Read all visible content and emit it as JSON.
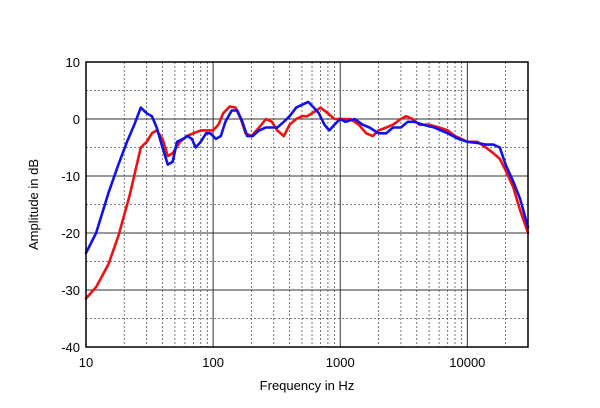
{
  "chart_data": {
    "type": "line",
    "xlabel": "Frequency in Hz",
    "ylabel": "Amplitude in dB",
    "xscale": "log",
    "xlim": [
      10,
      30000
    ],
    "ylim": [
      -40,
      10
    ],
    "grid": true,
    "x_tick_labels": [
      "10",
      "100",
      "1000",
      "10000"
    ],
    "x_ticks": [
      10,
      100,
      1000,
      10000
    ],
    "y_ticks": [
      -40,
      -30,
      -20,
      -10,
      0,
      10
    ],
    "y_tick_labels": [
      "-40",
      "-30",
      "-20",
      "-10",
      "0",
      "10"
    ],
    "series": [
      {
        "color": "#ee1111",
        "points": [
          [
            10,
            -31.5
          ],
          [
            12,
            -29.5
          ],
          [
            15,
            -25.5
          ],
          [
            18,
            -20.5
          ],
          [
            22,
            -13.5
          ],
          [
            27,
            -5
          ],
          [
            30,
            -4
          ],
          [
            33,
            -2.5
          ],
          [
            36,
            -2
          ],
          [
            40,
            -3.5
          ],
          [
            44,
            -6.5
          ],
          [
            48,
            -6
          ],
          [
            55,
            -4
          ],
          [
            62,
            -3
          ],
          [
            70,
            -2.5
          ],
          [
            80,
            -2
          ],
          [
            90,
            -2
          ],
          [
            100,
            -2
          ],
          [
            110,
            -1
          ],
          [
            120,
            1
          ],
          [
            135,
            2.2
          ],
          [
            150,
            2
          ],
          [
            165,
            0
          ],
          [
            180,
            -2.5
          ],
          [
            200,
            -3
          ],
          [
            230,
            -1.5
          ],
          [
            260,
            0
          ],
          [
            290,
            -0.5
          ],
          [
            320,
            -2
          ],
          [
            360,
            -3
          ],
          [
            400,
            -1
          ],
          [
            450,
            0
          ],
          [
            500,
            0.5
          ],
          [
            550,
            0.5
          ],
          [
            600,
            1
          ],
          [
            650,
            1.5
          ],
          [
            700,
            2
          ],
          [
            800,
            1
          ],
          [
            900,
            0
          ],
          [
            1000,
            0
          ],
          [
            1200,
            0
          ],
          [
            1400,
            -1
          ],
          [
            1600,
            -2.5
          ],
          [
            1800,
            -3
          ],
          [
            2000,
            -2
          ],
          [
            2300,
            -1.5
          ],
          [
            2600,
            -1
          ],
          [
            3000,
            0
          ],
          [
            3300,
            0.5
          ],
          [
            3700,
            0
          ],
          [
            4200,
            -1
          ],
          [
            5000,
            -1
          ],
          [
            6000,
            -1.5
          ],
          [
            7000,
            -2
          ],
          [
            8000,
            -3
          ],
          [
            9000,
            -3.5
          ],
          [
            10000,
            -4
          ],
          [
            12000,
            -4
          ],
          [
            14000,
            -5
          ],
          [
            16000,
            -6
          ],
          [
            18000,
            -7
          ],
          [
            20000,
            -9
          ],
          [
            23000,
            -12
          ],
          [
            26000,
            -16
          ],
          [
            30000,
            -20
          ]
        ]
      },
      {
        "color": "#1111ee",
        "points": [
          [
            10,
            -23.5
          ],
          [
            12,
            -20
          ],
          [
            15,
            -13
          ],
          [
            18,
            -8
          ],
          [
            21,
            -4
          ],
          [
            24,
            -1
          ],
          [
            27,
            2
          ],
          [
            30,
            1
          ],
          [
            33,
            0.5
          ],
          [
            36,
            -1.5
          ],
          [
            40,
            -5
          ],
          [
            44,
            -8
          ],
          [
            48,
            -7.5
          ],
          [
            52,
            -4
          ],
          [
            58,
            -3.5
          ],
          [
            63,
            -3
          ],
          [
            68,
            -3.5
          ],
          [
            73,
            -5
          ],
          [
            80,
            -4
          ],
          [
            88,
            -2.5
          ],
          [
            95,
            -2.5
          ],
          [
            105,
            -3.5
          ],
          [
            115,
            -3
          ],
          [
            125,
            -0.5
          ],
          [
            140,
            1.5
          ],
          [
            155,
            1.5
          ],
          [
            170,
            -0.5
          ],
          [
            185,
            -3
          ],
          [
            205,
            -3
          ],
          [
            230,
            -2
          ],
          [
            260,
            -1.5
          ],
          [
            290,
            -1.5
          ],
          [
            320,
            -1.5
          ],
          [
            360,
            -0.5
          ],
          [
            400,
            0.5
          ],
          [
            450,
            2
          ],
          [
            500,
            2.5
          ],
          [
            560,
            3
          ],
          [
            620,
            2
          ],
          [
            680,
            1
          ],
          [
            750,
            -1
          ],
          [
            820,
            -2
          ],
          [
            900,
            -1
          ],
          [
            1000,
            0
          ],
          [
            1100,
            -0.5
          ],
          [
            1300,
            0
          ],
          [
            1500,
            -1
          ],
          [
            1700,
            -1.5
          ],
          [
            2000,
            -2.5
          ],
          [
            2300,
            -2.5
          ],
          [
            2600,
            -1.5
          ],
          [
            3000,
            -1.5
          ],
          [
            3400,
            -0.5
          ],
          [
            3800,
            -0.5
          ],
          [
            4500,
            -1
          ],
          [
            5500,
            -1.5
          ],
          [
            7000,
            -2.5
          ],
          [
            8500,
            -3.5
          ],
          [
            10000,
            -4
          ],
          [
            12000,
            -4.2
          ],
          [
            14000,
            -4.5
          ],
          [
            16000,
            -4.5
          ],
          [
            18000,
            -5
          ],
          [
            20000,
            -8
          ],
          [
            23000,
            -11
          ],
          [
            26000,
            -14
          ],
          [
            30000,
            -19
          ]
        ]
      }
    ]
  }
}
